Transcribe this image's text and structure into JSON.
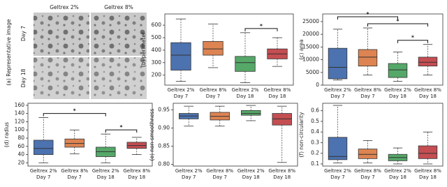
{
  "image_panel": {
    "label": "(a) Representative image",
    "columns": [
      "Geltrex 2%",
      "Geltrex 8%"
    ],
    "rows": [
      "Day 7",
      "Day 18"
    ]
  },
  "chart_data": [
    {
      "type": "box",
      "ylabel": "(b) perimeter",
      "categories": [
        [
          "Geltrex 2%",
          "Day 7"
        ],
        [
          "Geltrex 8%",
          "Day 7"
        ],
        [
          "Geltrex 2%",
          "Day 18"
        ],
        [
          "Geltrex 8%",
          "Day 18"
        ]
      ],
      "colors": [
        "#4c72b0",
        "#dd8452",
        "#55a868",
        "#c44e52"
      ],
      "boxes": [
        {
          "min": 150,
          "q1": 240,
          "median": 360,
          "q3": 460,
          "max": 650
        },
        {
          "min": 260,
          "q1": 360,
          "median": 410,
          "q3": 470,
          "max": 610
        },
        {
          "min": 140,
          "q1": 230,
          "median": 300,
          "q3": 350,
          "max": 540
        },
        {
          "min": 270,
          "q1": 330,
          "median": 370,
          "q3": 410,
          "max": 500
        }
      ],
      "ylim": [
        120,
        690
      ],
      "yticks": [
        200,
        300,
        400,
        500,
        600
      ],
      "significance": [
        {
          "between": [
            2,
            3
          ],
          "label": "*"
        }
      ]
    },
    {
      "type": "box",
      "ylabel": "(c) area",
      "categories": [
        [
          "Geltrex 2%",
          "Day 7"
        ],
        [
          "Geltrex 8%",
          "Day 7"
        ],
        [
          "Geltrex 2%",
          "Day 18"
        ],
        [
          "Geltrex 8%",
          "Day 18"
        ]
      ],
      "colors": [
        "#4c72b0",
        "#dd8452",
        "#55a868",
        "#c44e52"
      ],
      "boxes": [
        {
          "min": 2000,
          "q1": 2500,
          "median": 7000,
          "q3": 14500,
          "max": 22000
        },
        {
          "min": 4000,
          "q1": 7500,
          "median": 11000,
          "q3": 14000,
          "max": 22500
        },
        {
          "min": 1500,
          "q1": 3000,
          "median": 6000,
          "q3": 8500,
          "max": 13000
        },
        {
          "min": 4000,
          "q1": 7500,
          "median": 9000,
          "q3": 11000,
          "max": 16000
        }
      ],
      "ylim": [
        0,
        28000
      ],
      "yticks": [
        0,
        5000,
        10000,
        15000,
        20000,
        25000
      ],
      "significance": [
        {
          "between": [
            2,
            3
          ],
          "label": "*"
        },
        {
          "between": [
            1,
            3
          ],
          "label": "*"
        },
        {
          "between": [
            0,
            2
          ],
          "label": "*"
        }
      ]
    },
    {
      "type": "box",
      "ylabel": "(d) radius",
      "categories": [
        [
          "Geltrex 2%",
          "Day 7"
        ],
        [
          "Geltrex 8%",
          "Day 7"
        ],
        [
          "Geltrex 2%",
          "Day 18"
        ],
        [
          "Geltrex 8%",
          "Day 18"
        ]
      ],
      "colors": [
        "#4c72b0",
        "#dd8452",
        "#55a868",
        "#c44e52"
      ],
      "boxes": [
        {
          "min": 20,
          "q1": 40,
          "median": 55,
          "q3": 75,
          "max": 130
        },
        {
          "min": 42,
          "q1": 58,
          "median": 67,
          "q3": 78,
          "max": 100
        },
        {
          "min": 20,
          "q1": 35,
          "median": 47,
          "q3": 58,
          "max": 90
        },
        {
          "min": 40,
          "q1": 55,
          "median": 62,
          "q3": 70,
          "max": 82
        }
      ],
      "ylim": [
        12,
        165
      ],
      "yticks": [
        20,
        40,
        60,
        80,
        100,
        120,
        140,
        160
      ],
      "significance": [
        {
          "between": [
            2,
            3
          ],
          "label": "*"
        },
        {
          "between": [
            0,
            2
          ],
          "label": "*"
        }
      ]
    },
    {
      "type": "box",
      "ylabel": "(e) non-smoothness",
      "categories": [
        [
          "Geltrex 2%",
          "Day 7"
        ],
        [
          "Geltrex 8%",
          "Day 7"
        ],
        [
          "Geltrex 2%",
          "Day 18"
        ],
        [
          "Geltrex 8%",
          "Day 18"
        ]
      ],
      "colors": [
        "#4c72b0",
        "#dd8452",
        "#55a868",
        "#c44e52"
      ],
      "boxes": [
        {
          "min": 0.905,
          "q1": 0.925,
          "median": 0.933,
          "q3": 0.94,
          "max": 0.96
        },
        {
          "min": 0.905,
          "q1": 0.922,
          "median": 0.932,
          "q3": 0.943,
          "max": 0.96
        },
        {
          "min": 0.92,
          "q1": 0.935,
          "median": 0.94,
          "q3": 0.948,
          "max": 0.962
        },
        {
          "min": 0.805,
          "q1": 0.908,
          "median": 0.925,
          "q3": 0.94,
          "max": 0.96
        }
      ],
      "ylim": [
        0.795,
        0.968
      ],
      "yticks": [
        {
          "value": 0.8,
          "label": "0.80"
        },
        0.85,
        {
          "value": 0.9,
          "label": "0.90"
        },
        0.95
      ]
    },
    {
      "type": "box",
      "ylabel": "(f) non-circularity",
      "categories": [
        [
          "Geltrex 2%",
          "Day 7"
        ],
        [
          "Geltrex 8%",
          "Day 7"
        ],
        [
          "Geltrex 2%",
          "Day 18"
        ],
        [
          "Geltrex 8%",
          "Day 18"
        ]
      ],
      "colors": [
        "#4c72b0",
        "#dd8452",
        "#55a868",
        "#c44e52"
      ],
      "boxes": [
        {
          "min": 0.11,
          "q1": 0.14,
          "median": 0.17,
          "q3": 0.35,
          "max": 0.65
        },
        {
          "min": 0.11,
          "q1": 0.15,
          "median": 0.19,
          "q3": 0.24,
          "max": 0.32
        },
        {
          "min": 0.1,
          "q1": 0.13,
          "median": 0.16,
          "q3": 0.19,
          "max": 0.25
        },
        {
          "min": 0.1,
          "q1": 0.15,
          "median": 0.2,
          "q3": 0.27,
          "max": 0.4
        }
      ],
      "ylim": [
        0.08,
        0.67
      ],
      "yticks": [
        0.1,
        0.2,
        0.3,
        0.4,
        0.5,
        0.6
      ]
    }
  ]
}
